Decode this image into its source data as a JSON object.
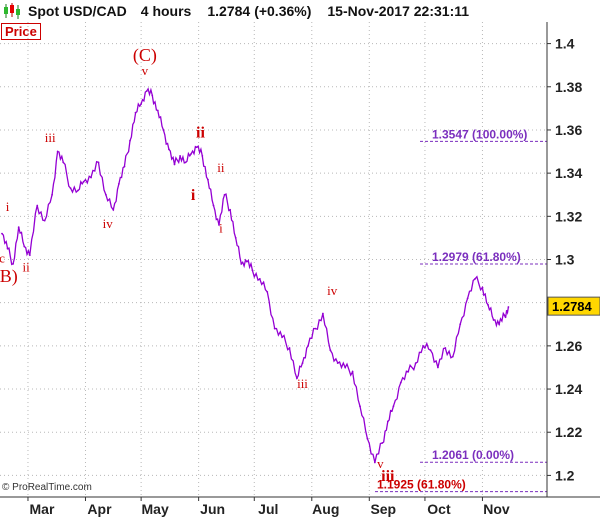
{
  "header": {
    "symbol": "Spot USD/CAD",
    "timeframe": "4 hours",
    "price": "1.2784",
    "change": "(+0.36%)",
    "datetime": "15-Nov-2017 22:31:11",
    "icon": "candlestick-chart-icon"
  },
  "panel_label": "Price",
  "watermark": "© ProRealTime.com",
  "colors": {
    "price_line": "#9400D3",
    "wave_label": "#cc0000",
    "fib_label": "#7b2fbe",
    "fib_line": "#7b2fbe",
    "last_price_box": "#ffd700",
    "grid": "#b8b8b8"
  },
  "chart_data": {
    "type": "line",
    "title": "Spot USD/CAD",
    "xlabel": "",
    "ylabel": "",
    "x_ticks": [
      "Mar",
      "Apr",
      "May",
      "Jun",
      "Jul",
      "Aug",
      "Sep",
      "Oct",
      "Nov"
    ],
    "y_ticks": [
      "1.2",
      "1.22",
      "1.24",
      "1.26",
      "1.28",
      "1.3",
      "1.32",
      "1.34",
      "1.36",
      "1.38",
      "1.4"
    ],
    "ylim": [
      1.19,
      1.41
    ],
    "grid": true,
    "last_price": "1.2784",
    "series": [
      {
        "x": [
          "Feb 15",
          "Feb 18",
          "Feb 21",
          "Feb 24",
          "Feb 27",
          "Mar 2",
          "Mar 6",
          "Mar 10",
          "Mar 14",
          "Mar 17",
          "Mar 20",
          "Mar 24",
          "Mar 28",
          "Mar 31",
          "Apr 4",
          "Apr 8",
          "Apr 12",
          "Apr 16",
          "Apr 19",
          "Apr 22",
          "Apr 25",
          "Apr 28",
          "May 1",
          "May 4",
          "May 7",
          "May 10",
          "May 13",
          "May 16",
          "May 19",
          "May 22",
          "May 25",
          "May 28",
          "May 31",
          "Jun 3",
          "Jun 6",
          "Jun 9",
          "Jun 12",
          "Jun 15",
          "Jun 18",
          "Jun 21",
          "Jun 24",
          "Jun 27",
          "Jun 30",
          "Jul 4",
          "Jul 8",
          "Jul 12",
          "Jul 16",
          "Jul 20",
          "Jul 24",
          "Jul 27",
          "Jul 30",
          "Aug 3",
          "Aug 7",
          "Aug 11",
          "Aug 15",
          "Aug 19",
          "Aug 23",
          "Aug 27",
          "Aug 31",
          "Sep 4",
          "Sep 8",
          "Sep 11",
          "Sep 14",
          "Sep 18",
          "Sep 22",
          "Sep 26",
          "Sep 30",
          "Oct 4",
          "Oct 8",
          "Oct 12",
          "Oct 16",
          "Oct 20",
          "Oct 24",
          "Oct 28",
          "Nov 1",
          "Nov 4",
          "Nov 7",
          "Nov 10",
          "Nov 13",
          "Nov 15"
        ],
        "values": [
          1.312,
          1.305,
          1.298,
          1.315,
          1.306,
          1.302,
          1.325,
          1.318,
          1.33,
          1.35,
          1.345,
          1.333,
          1.332,
          1.336,
          1.338,
          1.345,
          1.33,
          1.323,
          1.335,
          1.343,
          1.355,
          1.368,
          1.372,
          1.378,
          1.376,
          1.369,
          1.36,
          1.351,
          1.344,
          1.348,
          1.345,
          1.349,
          1.352,
          1.348,
          1.337,
          1.325,
          1.316,
          1.33,
          1.323,
          1.31,
          1.298,
          1.299,
          1.295,
          1.291,
          1.285,
          1.268,
          1.264,
          1.259,
          1.245,
          1.252,
          1.26,
          1.268,
          1.275,
          1.258,
          1.252,
          1.25,
          1.248,
          1.232,
          1.217,
          1.206,
          1.215,
          1.225,
          1.232,
          1.243,
          1.248,
          1.252,
          1.26,
          1.258,
          1.25,
          1.259,
          1.255,
          1.27,
          1.282,
          1.291,
          1.287,
          1.279,
          1.272,
          1.27,
          1.274,
          1.278
        ]
      }
    ],
    "fib_levels": [
      {
        "label": "1.3547 (100.00%)",
        "value": 1.3547
      },
      {
        "label": "1.2979 (61.80%)",
        "value": 1.2979
      },
      {
        "label": "1.2061 (0.00%)",
        "value": 1.2061
      },
      {
        "label": "1.1925 (61.80%)",
        "value": 1.1925
      }
    ],
    "annotations": [
      {
        "text": "(C)",
        "date": "May 3",
        "value": 1.392,
        "size": "large"
      },
      {
        "text": "v",
        "date": "May 3",
        "value": 1.3855
      },
      {
        "text": "iii",
        "date": "Mar 13",
        "value": 1.3545
      },
      {
        "text": "ii",
        "date": "Jun 2",
        "value": 1.3565,
        "bold": true
      },
      {
        "text": "i",
        "date": "May 29",
        "value": 1.3275,
        "bold": true
      },
      {
        "text": "ii",
        "date": "Jun 13",
        "value": 1.3405
      },
      {
        "text": "i",
        "date": "Feb 18",
        "value": 1.3225
      },
      {
        "text": "c",
        "date": "Feb 15",
        "value": 1.2985
      },
      {
        "text": "(B)",
        "date": "Feb 17",
        "value": 1.2895,
        "size": "large"
      },
      {
        "text": "ii",
        "date": "Feb 28",
        "value": 1.2945
      },
      {
        "text": "iv",
        "date": "Apr 13",
        "value": 1.3145
      },
      {
        "text": "i",
        "date": "Jun 13",
        "value": 1.3125
      },
      {
        "text": "iv",
        "date": "Aug 12",
        "value": 1.2835
      },
      {
        "text": "iii",
        "date": "Jul 27",
        "value": 1.2405
      },
      {
        "text": "v",
        "date": "Sep 7",
        "value": 1.2035
      },
      {
        "text": "iii",
        "date": "Sep 11",
        "value": 1.1975,
        "bold": true
      }
    ]
  }
}
